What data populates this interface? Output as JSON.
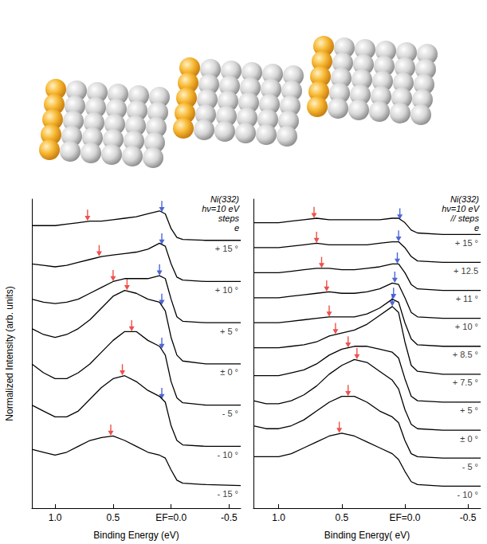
{
  "chart_data": [
    {
      "type": "line",
      "annotations": [
        "Ni(332)",
        "hν=10 eV",
        "steps",
        "e"
      ],
      "x_label": "Binding Energy (eV)",
      "y_label": "Normalized Intensity (arb. units)",
      "xlim": [
        1.2,
        -0.6
      ],
      "xticks": [
        {
          "value": 1,
          "label": "1.0"
        },
        0.5,
        {
          "value": 0,
          "label": "EF=0.0"
        },
        -0.5
      ],
      "ylim": [
        -5,
        100
      ],
      "tick_labels": "x",
      "grid": false,
      "x": [
        1.2,
        1.1,
        1.0,
        0.9,
        0.8,
        0.7,
        0.6,
        0.5,
        0.4,
        0.3,
        0.2,
        0.1,
        0.05,
        0.0,
        -0.05,
        -0.1,
        -0.3,
        -0.6
      ],
      "series": [
        {
          "name": "+ 15 °",
          "color": "#000000",
          "values": [
            91,
            91,
            91,
            91.5,
            92,
            92.5,
            92.5,
            93,
            93.5,
            94,
            95,
            96,
            95,
            90,
            87,
            86.3,
            86,
            86
          ],
          "peaks": [
            {
              "x": 0.72,
              "y": 94.5,
              "color": "#e8251f"
            },
            {
              "x": 0.08,
              "y": 97.5,
              "color": "#1f3fd0"
            }
          ]
        },
        {
          "name": "+ 10 °",
          "color": "#000000",
          "values": [
            78,
            77.5,
            77,
            77.5,
            78.5,
            79.5,
            80.5,
            81,
            81.5,
            82,
            83,
            85,
            84,
            78,
            73.5,
            72.5,
            72,
            72
          ],
          "peaks": [
            {
              "x": 0.62,
              "y": 82.5,
              "color": "#e8251f"
            },
            {
              "x": 0.08,
              "y": 86.5,
              "color": "#1f3fd0"
            }
          ]
        },
        {
          "name": "+ 5 °",
          "color": "#000000",
          "values": [
            66,
            65,
            64.5,
            65,
            66,
            68,
            70,
            72,
            73,
            73,
            73,
            74,
            73,
            66,
            60,
            58.5,
            58,
            58
          ],
          "peaks": [
            {
              "x": 0.5,
              "y": 74,
              "color": "#e8251f"
            },
            {
              "x": 0.1,
              "y": 76,
              "color": "#1f3fd0"
            }
          ]
        },
        {
          "name": "± 0 °",
          "color": "#000000",
          "values": [
            56,
            54,
            53,
            54,
            56,
            59,
            63,
            67,
            69,
            68,
            66,
            65,
            62,
            53,
            47,
            45,
            44,
            44
          ],
          "peaks": [
            {
              "x": 0.38,
              "y": 71,
              "color": "#e8251f"
            },
            {
              "x": 0.08,
              "y": 66,
              "color": "#1f3fd0"
            }
          ]
        },
        {
          "name": "- 5 °",
          "color": "#000000",
          "values": [
            44,
            41,
            39,
            39,
            41,
            44,
            48,
            52,
            55,
            55,
            52,
            50,
            47,
            38,
            32.5,
            30.8,
            30,
            30
          ],
          "peaks": [
            {
              "x": 0.34,
              "y": 57,
              "color": "#e8251f"
            },
            {
              "x": 0.08,
              "y": 51,
              "color": "#1f3fd0"
            }
          ]
        },
        {
          "name": "- 10 °",
          "color": "#000000",
          "values": [
            30,
            28,
            26,
            26,
            28,
            32,
            36,
            39,
            40,
            38,
            35,
            33,
            31,
            23,
            18,
            16.5,
            16,
            16
          ],
          "peaks": [
            {
              "x": 0.42,
              "y": 42,
              "color": "#e8251f"
            },
            {
              "x": 0.08,
              "y": 34,
              "color": "#1f3fd0"
            }
          ]
        },
        {
          "name": "- 15 °",
          "color": "#000000",
          "values": [
            15,
            14,
            13,
            14,
            16,
            18,
            19,
            19.5,
            18,
            16,
            14,
            13,
            12,
            8,
            4.5,
            3.5,
            3,
            2.7
          ],
          "peaks": [
            {
              "x": 0.52,
              "y": 21.5,
              "color": "#e8251f"
            }
          ]
        }
      ]
    },
    {
      "type": "line",
      "annotations": [
        "Ni(332)",
        "hν=10 eV",
        "// steps",
        "e"
      ],
      "x_label": "Binding Energy( eV)",
      "xlim": [
        1.2,
        -0.6
      ],
      "xticks": [
        {
          "value": 1,
          "label": "1.0"
        },
        0.5,
        {
          "value": 0,
          "label": "EF=0.0"
        },
        -0.5
      ],
      "ylim": [
        -5,
        100
      ],
      "tick_labels": "x",
      "grid": false,
      "x": [
        1.2,
        1.1,
        1.0,
        0.9,
        0.8,
        0.7,
        0.6,
        0.5,
        0.4,
        0.3,
        0.2,
        0.1,
        0.05,
        0.0,
        -0.05,
        -0.1,
        -0.3,
        -0.6
      ],
      "series": [
        {
          "name": "+ 15 °",
          "color": "#000000",
          "values": [
            92,
            92,
            92,
            92.5,
            93,
            93.5,
            93,
            93,
            93,
            93,
            93,
            93.5,
            93.5,
            92,
            89.5,
            88.5,
            88,
            88
          ],
          "peaks": [
            {
              "x": 0.72,
              "y": 95.5,
              "color": "#e8251f"
            },
            {
              "x": 0.04,
              "y": 95,
              "color": "#1f3fd0"
            }
          ]
        },
        {
          "name": "+ 12.5",
          "color": "#000000",
          "values": [
            83.5,
            83.5,
            83.5,
            84,
            84.5,
            85,
            84.5,
            84.5,
            84.5,
            84.5,
            85,
            85.5,
            85.5,
            83.5,
            80.5,
            79,
            78.5,
            78.5
          ],
          "peaks": [
            {
              "x": 0.7,
              "y": 87,
              "color": "#e8251f"
            },
            {
              "x": 0.05,
              "y": 87.5,
              "color": "#1f3fd0"
            }
          ]
        },
        {
          "name": "+ 11 °",
          "color": "#000000",
          "values": [
            75,
            75,
            75,
            75.5,
            76,
            76.5,
            76.5,
            76,
            76,
            76.5,
            77,
            78,
            78,
            75,
            71,
            69.5,
            69,
            69
          ],
          "peaks": [
            {
              "x": 0.66,
              "y": 78.5,
              "color": "#e8251f"
            },
            {
              "x": 0.06,
              "y": 80,
              "color": "#1f3fd0"
            }
          ]
        },
        {
          "name": "+ 10 °",
          "color": "#000000",
          "values": [
            66.5,
            66.5,
            66.5,
            67,
            67.5,
            68,
            68.5,
            68,
            68,
            68.5,
            69.5,
            71.5,
            71,
            66.5,
            61.5,
            60,
            59.5,
            59.5
          ],
          "peaks": [
            {
              "x": 0.62,
              "y": 70.5,
              "color": "#e8251f"
            },
            {
              "x": 0.08,
              "y": 73.5,
              "color": "#1f3fd0"
            }
          ]
        },
        {
          "name": "+ 8.5 °",
          "color": "#000000",
          "values": [
            58,
            58,
            58,
            58.5,
            59,
            59.5,
            60,
            60,
            60,
            61,
            63,
            66,
            65,
            58,
            52.5,
            50.5,
            50,
            50
          ],
          "peaks": [
            {
              "x": 0.6,
              "y": 62,
              "color": "#e8251f"
            },
            {
              "x": 0.09,
              "y": 68,
              "color": "#1f3fd0"
            }
          ]
        },
        {
          "name": "+ 7.5 °",
          "color": "#000000",
          "values": [
            49.5,
            49.5,
            49.5,
            50,
            50.5,
            51.5,
            53.5,
            54.5,
            55.5,
            57.5,
            60.5,
            63.5,
            61.5,
            51.5,
            43.5,
            41.5,
            40.5,
            40.5
          ],
          "peaks": [
            {
              "x": 0.55,
              "y": 56,
              "color": "#e8251f"
            },
            {
              "x": 0.1,
              "y": 65.5,
              "color": "#1f3fd0"
            }
          ]
        },
        {
          "name": "+ 5 °",
          "color": "#000000",
          "values": [
            40,
            40,
            40,
            41,
            42,
            44,
            47,
            49,
            50,
            50,
            49,
            48,
            46,
            39,
            33,
            31.5,
            31,
            31
          ],
          "peaks": [
            {
              "x": 0.45,
              "y": 51.5,
              "color": "#e8251f"
            }
          ]
        },
        {
          "name": "± 0 °",
          "color": "#000000",
          "values": [
            31.5,
            30.5,
            30.5,
            31.5,
            33.5,
            36.5,
            40.5,
            43.5,
            45.5,
            44.5,
            41.5,
            38.5,
            35.5,
            28.5,
            23.5,
            22,
            21.5,
            21.5
          ],
          "peaks": [
            {
              "x": 0.38,
              "y": 47.5,
              "color": "#e8251f"
            }
          ]
        },
        {
          "name": "- 5 °",
          "color": "#000000",
          "values": [
            23,
            22,
            22,
            23,
            25,
            28,
            31,
            33,
            33,
            31,
            28,
            26,
            24,
            18,
            13.5,
            12.5,
            12,
            12
          ],
          "peaks": [
            {
              "x": 0.45,
              "y": 35,
              "color": "#e8251f"
            }
          ]
        },
        {
          "name": "- 10 °",
          "color": "#000000",
          "values": [
            12.5,
            12.5,
            12.5,
            13.5,
            15.5,
            17.5,
            19.5,
            20.5,
            19.5,
            17.5,
            15.5,
            13.5,
            11.5,
            7.5,
            4,
            3,
            2.5,
            2.5
          ],
          "peaks": [
            {
              "x": 0.52,
              "y": 22.5,
              "color": "#e8251f"
            }
          ]
        }
      ]
    }
  ]
}
